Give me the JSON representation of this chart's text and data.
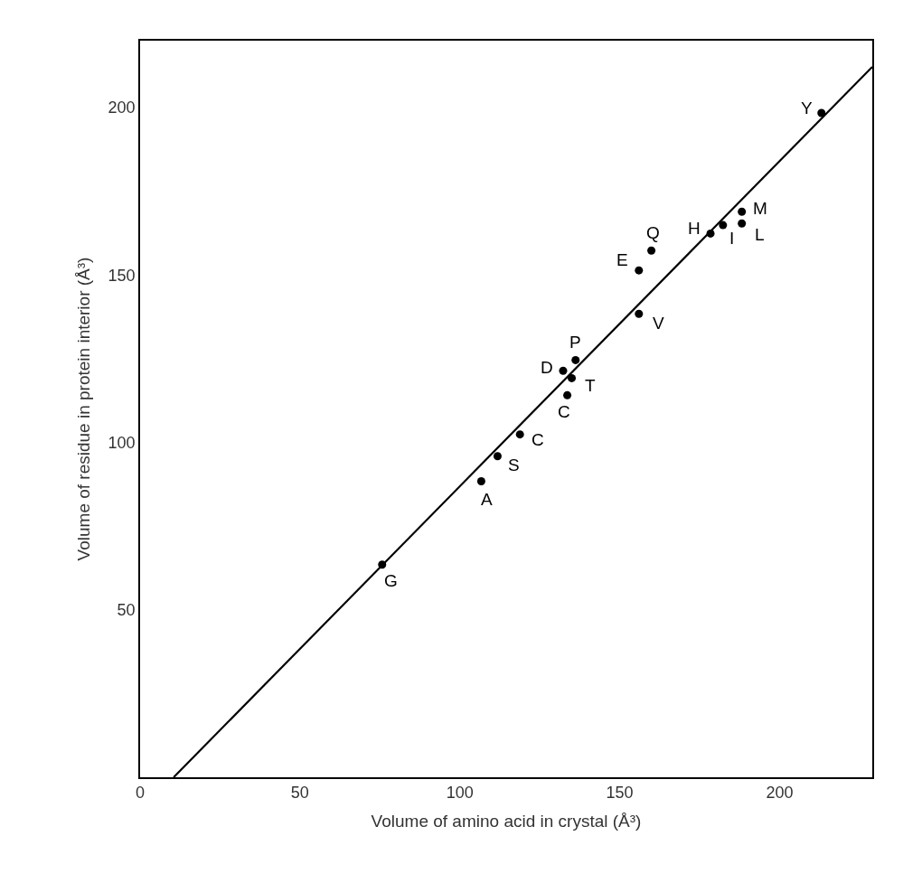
{
  "chart_data": {
    "type": "scatter",
    "xlabel": "Volume of amino acid in crystal (Å³)",
    "ylabel": "Volume of residue in protein interior (Å³)",
    "xlim": [
      0,
      229
    ],
    "ylim": [
      0,
      220
    ],
    "xticks": [
      0,
      50,
      100,
      150,
      200
    ],
    "yticks": [
      50,
      100,
      150,
      200
    ],
    "marker": "circle",
    "series": [
      {
        "color": "#000000",
        "x": [
          213.1,
          188.2,
          188.2,
          182.3,
          178.4,
          159.9,
          156.0,
          156.0,
          136.2,
          132.3,
          135.0,
          133.6,
          118.8,
          111.8,
          106.7,
          75.7
        ],
        "values": [
          198.4,
          168.9,
          165.4,
          164.9,
          162.4,
          157.3,
          151.4,
          138.4,
          124.6,
          121.4,
          119.2,
          114.1,
          102.4,
          95.9,
          88.4,
          63.5
        ]
      },
      {
        "type": "line",
        "marker": "none",
        "color": "#000000",
        "x": [
          10.5,
          229
        ],
        "values": [
          0,
          212.2
        ]
      }
    ],
    "annotations": [
      {
        "text": "Y",
        "x": 213.1,
        "y": 198.4
      },
      {
        "text": "M",
        "x": 188.2,
        "y": 168.9
      },
      {
        "text": "L",
        "x": 188.2,
        "y": 165.4
      },
      {
        "text": "I",
        "x": 182.3,
        "y": 164.9
      },
      {
        "text": "H",
        "x": 178.4,
        "y": 162.4
      },
      {
        "text": "Q",
        "x": 159.9,
        "y": 157.3
      },
      {
        "text": "E",
        "x": 156.0,
        "y": 151.4
      },
      {
        "text": "V",
        "x": 156.0,
        "y": 138.4
      },
      {
        "text": "P",
        "x": 136.2,
        "y": 124.6
      },
      {
        "text": "D",
        "x": 132.3,
        "y": 121.4
      },
      {
        "text": "T",
        "x": 135.0,
        "y": 119.2
      },
      {
        "text": "C",
        "x": 133.6,
        "y": 114.1
      },
      {
        "text": "C",
        "x": 118.8,
        "y": 102.4
      },
      {
        "text": "S",
        "x": 111.8,
        "y": 95.9
      },
      {
        "text": "A",
        "x": 106.7,
        "y": 88.4
      },
      {
        "text": "G",
        "x": 75.7,
        "y": 63.5
      }
    ]
  }
}
